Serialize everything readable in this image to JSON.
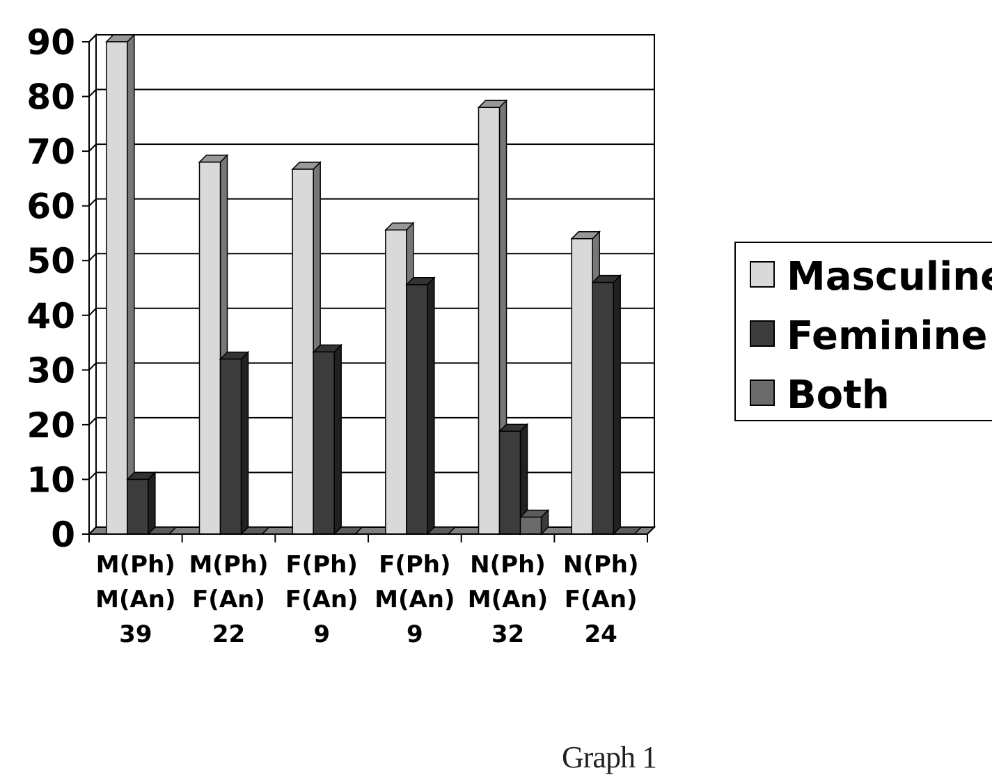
{
  "chart_data": {
    "type": "bar",
    "categories": [
      [
        "M(Ph)",
        "M(An)",
        "39"
      ],
      [
        "M(Ph)",
        "F(An)",
        "22"
      ],
      [
        "F(Ph)",
        "F(An)",
        "9"
      ],
      [
        "F(Ph)",
        "M(An)",
        "9"
      ],
      [
        "N(Ph)",
        "M(An)",
        "32"
      ],
      [
        "N(Ph)",
        "F(An)",
        "24"
      ]
    ],
    "series": [
      {
        "name": "Masculine",
        "color": "#d9d9d9",
        "values": [
          90,
          68,
          66.7,
          55.6,
          78,
          54
        ]
      },
      {
        "name": "Feminine",
        "color": "#3c3c3c",
        "values": [
          10,
          32,
          33.3,
          45.6,
          18.8,
          46
        ]
      },
      {
        "name": "Both",
        "color": "#6b6b6b",
        "values": [
          0,
          0,
          0,
          0,
          3.1,
          0
        ]
      }
    ],
    "ylim": [
      0,
      90
    ],
    "yticks": [
      0,
      10,
      20,
      30,
      40,
      50,
      60,
      70,
      80,
      90
    ],
    "grid": true,
    "legend_position": "right",
    "three_d": true
  },
  "caption": "Graph 1"
}
